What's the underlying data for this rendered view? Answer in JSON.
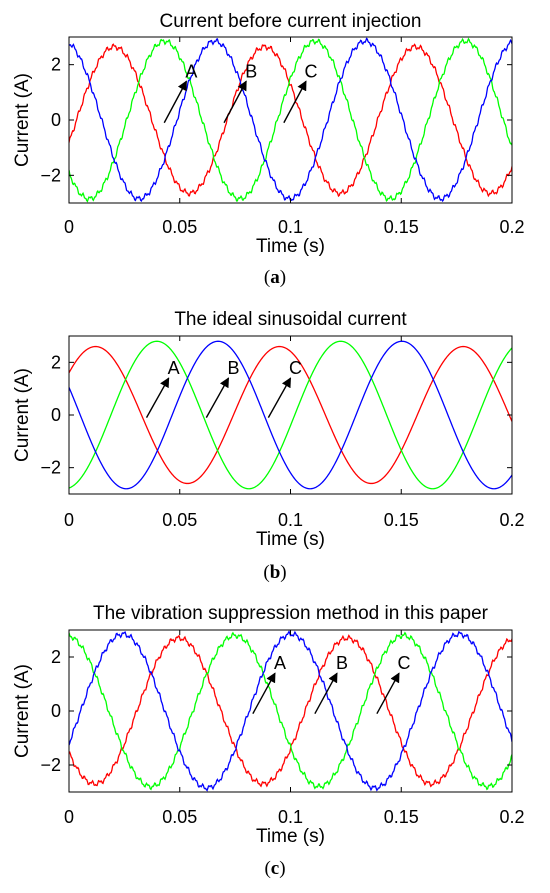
{
  "chart_data": [
    {
      "type": "line",
      "title": "Current before current injection",
      "xlabel": "Time (s)",
      "ylabel": "Current (A)",
      "xlim": [
        0,
        0.2
      ],
      "ylim": [
        -3,
        3
      ],
      "xticks": [
        "0",
        "0.05",
        "0.1",
        "0.15",
        "0.2"
      ],
      "yticks": [
        "2",
        "0",
        "−2"
      ],
      "caption_letter": "a",
      "grid": false,
      "series": [
        {
          "name": "A",
          "color": "#ff0000",
          "amplitude": 2.65,
          "period": 0.068,
          "phase_deg": -18
        },
        {
          "name": "B",
          "color": "#00ff00",
          "amplitude": 2.85,
          "period": 0.068,
          "phase_deg": -138
        },
        {
          "name": "C",
          "color": "#0000ff",
          "amplitude": 2.85,
          "period": 0.068,
          "phase_deg": 102
        }
      ],
      "annotations": [
        {
          "text": "A",
          "x_start": 0.043,
          "y_start": -0.1,
          "x_end": 0.053,
          "y_end": 1.4
        },
        {
          "text": "B",
          "x_start": 0.07,
          "y_start": -0.1,
          "x_end": 0.08,
          "y_end": 1.4
        },
        {
          "text": "C",
          "x_start": 0.097,
          "y_start": -0.1,
          "x_end": 0.107,
          "y_end": 1.4
        }
      ]
    },
    {
      "type": "line",
      "title": "The ideal sinusoidal current",
      "xlabel": "Time (s)",
      "ylabel": "Current (A)",
      "xlim": [
        0,
        0.2
      ],
      "ylim": [
        -3,
        3
      ],
      "xticks": [
        "0",
        "0.05",
        "0.1",
        "0.15",
        "0.2"
      ],
      "yticks": [
        "2",
        "0",
        "−2"
      ],
      "caption_letter": "b",
      "grid": false,
      "series": [
        {
          "name": "A",
          "color": "#ff0000",
          "amplitude": 2.6,
          "period": 0.083,
          "phase_deg": 38
        },
        {
          "name": "B",
          "color": "#00ff00",
          "amplitude": 2.8,
          "period": 0.083,
          "phase_deg": -82
        },
        {
          "name": "C",
          "color": "#0000ff",
          "amplitude": 2.8,
          "period": 0.083,
          "phase_deg": 158
        }
      ],
      "annotations": [
        {
          "text": "A",
          "x_start": 0.035,
          "y_start": -0.1,
          "x_end": 0.045,
          "y_end": 1.4
        },
        {
          "text": "B",
          "x_start": 0.062,
          "y_start": -0.1,
          "x_end": 0.072,
          "y_end": 1.4
        },
        {
          "text": "C",
          "x_start": 0.09,
          "y_start": -0.1,
          "x_end": 0.1,
          "y_end": 1.4
        }
      ]
    },
    {
      "type": "line",
      "title": "The vibration suppression method in this paper",
      "xlabel": "Time (s)",
      "ylabel": "Current (A)",
      "xlim": [
        0,
        0.2
      ],
      "ylim": [
        -3,
        3
      ],
      "xticks": [
        "0",
        "0.05",
        "0.1",
        "0.15",
        "0.2"
      ],
      "yticks": [
        "2",
        "0",
        "−2"
      ],
      "caption_letter": "c",
      "grid": false,
      "series": [
        {
          "name": "A",
          "color": "#ff0000",
          "amplitude": 2.7,
          "period": 0.076,
          "phase_deg": -145
        },
        {
          "name": "B",
          "color": "#00ff00",
          "amplitude": 2.8,
          "period": 0.076,
          "phase_deg": 95
        },
        {
          "name": "C",
          "color": "#0000ff",
          "amplitude": 2.85,
          "period": 0.076,
          "phase_deg": -25
        }
      ],
      "annotations": [
        {
          "text": "A",
          "x_start": 0.083,
          "y_start": -0.1,
          "x_end": 0.093,
          "y_end": 1.4
        },
        {
          "text": "B",
          "x_start": 0.111,
          "y_start": -0.1,
          "x_end": 0.121,
          "y_end": 1.4
        },
        {
          "text": "C",
          "x_start": 0.139,
          "y_start": -0.1,
          "x_end": 0.149,
          "y_end": 1.4
        }
      ]
    }
  ]
}
